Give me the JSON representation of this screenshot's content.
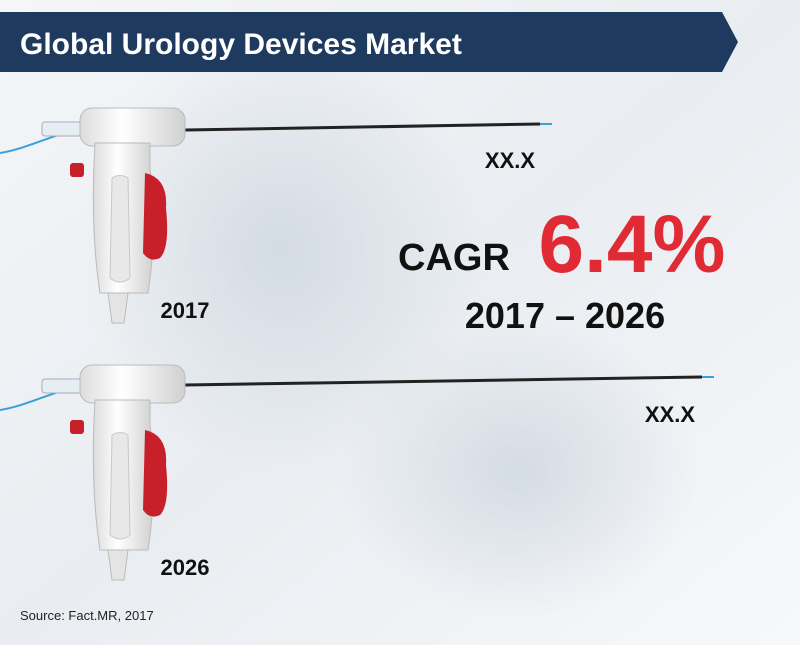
{
  "header": {
    "title": "Global Urology Devices Market"
  },
  "items": [
    {
      "year": "2017",
      "value": "XX.X"
    },
    {
      "year": "2026",
      "value": "XX.X"
    }
  ],
  "cagr": {
    "label": "CAGR",
    "value": "6.4%",
    "period": "2017 – 2026"
  },
  "source": "Source: Fact.MR, 2017"
}
